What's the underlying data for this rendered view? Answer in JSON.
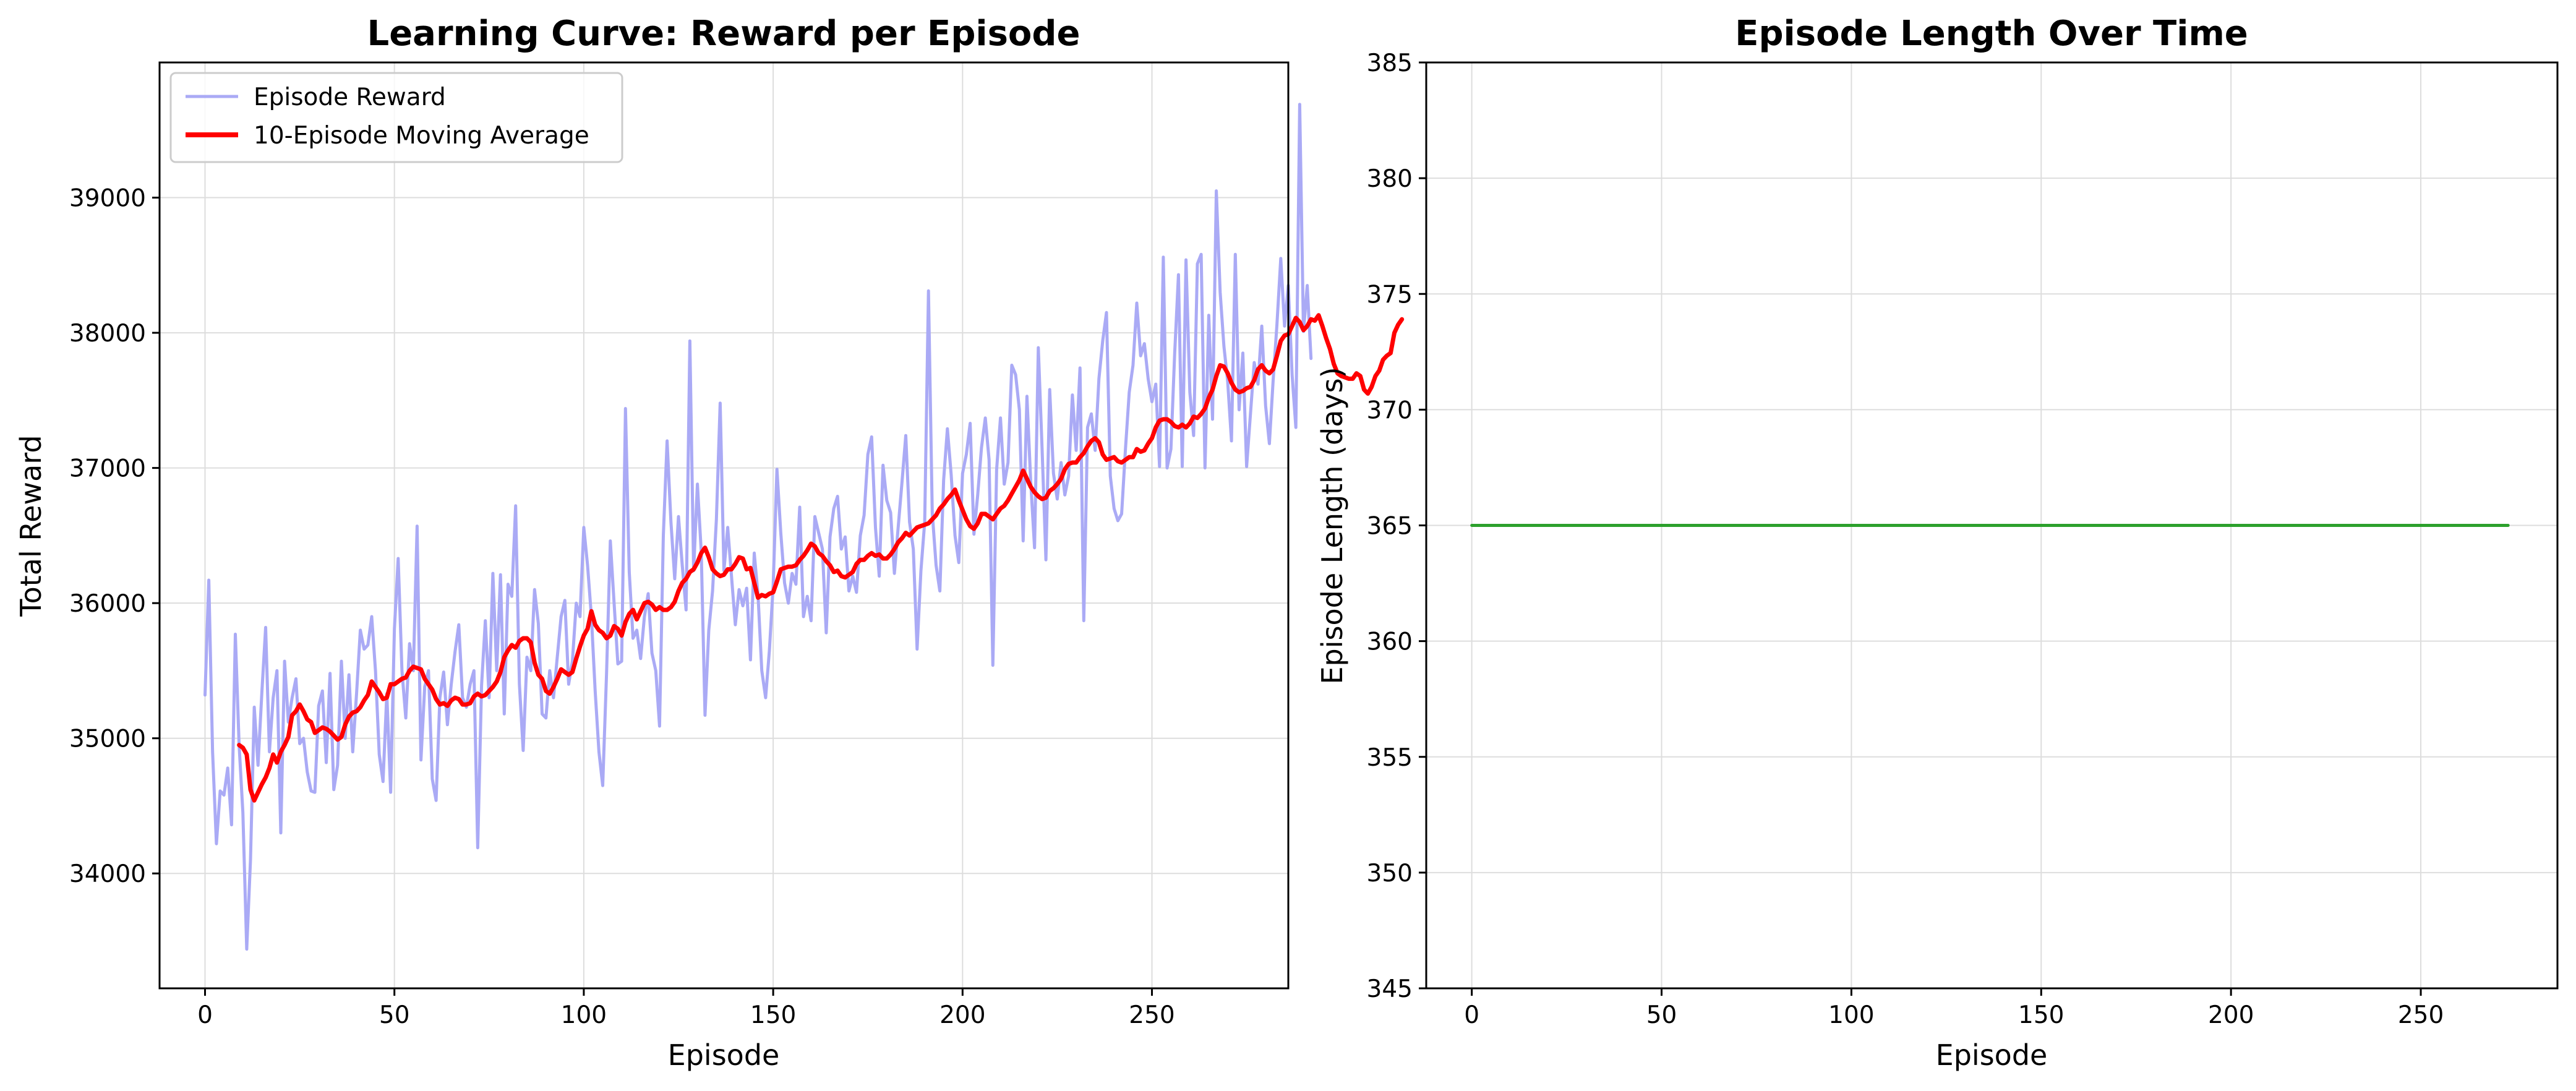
{
  "chart_data": [
    {
      "type": "line",
      "title": "Learning Curve: Reward per Episode",
      "xlabel": "Episode",
      "ylabel": "Total Reward",
      "xlim": [
        -12,
        286
      ],
      "ylim": [
        33150,
        40000
      ],
      "xticks": [
        0,
        50,
        100,
        150,
        200,
        250
      ],
      "yticks": [
        34000,
        35000,
        36000,
        37000,
        38000,
        39000
      ],
      "grid": true,
      "legend_position": "top-left",
      "series": [
        {
          "name": "Episode Reward",
          "color": "#aaaaf5",
          "x_start": 0,
          "values": [
            35320,
            36170,
            34900,
            34220,
            34610,
            34580,
            34780,
            34360,
            35770,
            34950,
            34450,
            33440,
            34100,
            35230,
            34800,
            35340,
            35820,
            34900,
            35300,
            35500,
            34300,
            35570,
            35120,
            35300,
            35440,
            34960,
            35000,
            34750,
            34610,
            34600,
            35240,
            35350,
            34820,
            35480,
            34620,
            34800,
            35570,
            35000,
            35470,
            34900,
            35330,
            35800,
            35660,
            35690,
            35900,
            35500,
            34880,
            34680,
            35330,
            34600,
            35810,
            36330,
            35500,
            35150,
            35700,
            35500,
            36570,
            34840,
            35380,
            35500,
            34700,
            34540,
            35300,
            35490,
            35100,
            35400,
            35640,
            35840,
            35300,
            35230,
            35400,
            35500,
            34190,
            35390,
            35870,
            35300,
            36220,
            35500,
            36210,
            35180,
            36140,
            36050,
            36720,
            35400,
            34910,
            35600,
            35500,
            36100,
            35850,
            35180,
            35150,
            35500,
            35300,
            35600,
            35900,
            36020,
            35400,
            35570,
            36000,
            35900,
            36560,
            36280,
            35900,
            35350,
            34900,
            34650,
            35480,
            36460,
            36000,
            35550,
            35570,
            37440,
            36230,
            35740,
            35800,
            35590,
            35900,
            36070,
            35630,
            35500,
            35090,
            36500,
            37200,
            36600,
            36180,
            36640,
            36280,
            35950,
            37940,
            36240,
            36880,
            36380,
            35170,
            35800,
            36090,
            36620,
            37480,
            36240,
            36560,
            36200,
            35840,
            36100,
            35980,
            36110,
            35580,
            36370,
            36060,
            35500,
            35300,
            35650,
            36130,
            36990,
            36520,
            36150,
            36000,
            36220,
            36140,
            36710,
            35900,
            36050,
            35870,
            36640,
            36520,
            36400,
            35780,
            36490,
            36700,
            36790,
            36400,
            36490,
            36090,
            36200,
            36080,
            36500,
            36650,
            37100,
            37230,
            36560,
            36200,
            37020,
            36760,
            36670,
            36220,
            36560,
            36890,
            37240,
            36600,
            36400,
            35660,
            36240,
            36600,
            38310,
            36670,
            36280,
            36090,
            36910,
            37290,
            36950,
            36500,
            36300,
            36960,
            37100,
            37330,
            36510,
            36800,
            37150,
            37370,
            37060,
            35540,
            36990,
            37370,
            36880,
            37040,
            37760,
            37690,
            37430,
            36460,
            37530,
            36890,
            36410,
            37890,
            37140,
            36320,
            37580,
            36960,
            36770,
            37040,
            36800,
            36940,
            37540,
            37130,
            37740,
            35870,
            37300,
            37400,
            37130,
            37660,
            37940,
            38150,
            36940,
            36700,
            36610,
            36660,
            37140,
            37560,
            37760,
            38220,
            37830,
            37920,
            37660,
            37490,
            37620,
            37010,
            38560,
            37000,
            37140,
            37850,
            38430,
            37010,
            38540,
            37560,
            37240,
            38510,
            38580,
            37000,
            38130,
            37360,
            39050,
            38300,
            37900,
            37640,
            37200,
            38580,
            37430,
            37850,
            37010,
            37400,
            37780,
            37620,
            38050,
            37460,
            37180,
            37650,
            38060,
            38550,
            38050,
            38350,
            37690,
            37300,
            39690,
            38010,
            38350,
            37810
          ]
        },
        {
          "name": "10-Episode Moving Average",
          "color": "#ff0000",
          "x_start": 9,
          "values": [
            34950,
            34930,
            34880,
            34620,
            34540,
            34600,
            34660,
            34710,
            34780,
            34880,
            34820,
            34900,
            34950,
            35010,
            35170,
            35200,
            35250,
            35200,
            35140,
            35120,
            35040,
            35060,
            35080,
            35070,
            35050,
            35020,
            34990,
            35010,
            35100,
            35160,
            35190,
            35200,
            35230,
            35280,
            35320,
            35420,
            35380,
            35340,
            35290,
            35300,
            35400,
            35400,
            35420,
            35440,
            35450,
            35500,
            35530,
            35520,
            35510,
            35440,
            35400,
            35360,
            35290,
            35250,
            35260,
            35240,
            35280,
            35300,
            35290,
            35250,
            35250,
            35260,
            35310,
            35330,
            35310,
            35320,
            35350,
            35380,
            35420,
            35490,
            35600,
            35650,
            35690,
            35670,
            35720,
            35740,
            35740,
            35710,
            35560,
            35470,
            35440,
            35350,
            35330,
            35380,
            35440,
            35510,
            35490,
            35470,
            35490,
            35590,
            35680,
            35760,
            35810,
            35940,
            35840,
            35800,
            35780,
            35740,
            35760,
            35830,
            35810,
            35760,
            35860,
            35920,
            35950,
            35880,
            35940,
            36000,
            36010,
            35990,
            35950,
            35970,
            35950,
            35950,
            35970,
            36010,
            36090,
            36150,
            36180,
            36230,
            36250,
            36300,
            36370,
            36410,
            36340,
            36250,
            36220,
            36200,
            36210,
            36250,
            36250,
            36290,
            36340,
            36330,
            36250,
            36260,
            36150,
            36040,
            36060,
            36050,
            36070,
            36080,
            36160,
            36250,
            36260,
            36270,
            36270,
            36280,
            36320,
            36350,
            36390,
            36440,
            36420,
            36370,
            36350,
            36310,
            36280,
            36230,
            36240,
            36200,
            36190,
            36210,
            36230,
            36290,
            36320,
            36320,
            36350,
            36370,
            36350,
            36360,
            36330,
            36330,
            36360,
            36400,
            36450,
            36480,
            36520,
            36500,
            36530,
            36560,
            36570,
            36580,
            36590,
            36620,
            36650,
            36700,
            36730,
            36770,
            36800,
            36840,
            36760,
            36690,
            36620,
            36570,
            36550,
            36590,
            36660,
            36660,
            36640,
            36620,
            36660,
            36700,
            36720,
            36760,
            36810,
            36860,
            36910,
            36980,
            36920,
            36860,
            36820,
            36790,
            36770,
            36780,
            36830,
            36850,
            36880,
            36920,
            36990,
            37030,
            37040,
            37040,
            37080,
            37110,
            37160,
            37200,
            37220,
            37190,
            37100,
            37060,
            37070,
            37080,
            37050,
            37040,
            37060,
            37080,
            37080,
            37140,
            37120,
            37130,
            37180,
            37220,
            37300,
            37350,
            37360,
            37360,
            37340,
            37310,
            37300,
            37320,
            37300,
            37330,
            37380,
            37370,
            37400,
            37440,
            37520,
            37580,
            37680,
            37760,
            37750,
            37700,
            37630,
            37580,
            37560,
            37570,
            37590,
            37600,
            37650,
            37730,
            37760,
            37720,
            37700,
            37730,
            37830,
            37940,
            37980,
            37990,
            38050,
            38110,
            38080,
            38020,
            38050,
            38100,
            38090,
            38130,
            38050,
            37960,
            37880,
            37770,
            37700,
            37680,
            37670,
            37660,
            37660,
            37700,
            37680,
            37580,
            37550,
            37600,
            37680,
            37720,
            37800,
            37830,
            37850,
            38000,
            38060,
            38100
          ]
        }
      ]
    },
    {
      "type": "line",
      "title": "Episode Length Over Time",
      "xlabel": "Episode",
      "ylabel": "Episode Length (days)",
      "xlim": [
        -12,
        286
      ],
      "ylim": [
        345,
        385
      ],
      "xticks": [
        0,
        50,
        100,
        150,
        200,
        250
      ],
      "yticks": [
        345,
        350,
        355,
        360,
        365,
        370,
        375,
        380,
        385
      ],
      "grid": true,
      "series": [
        {
          "color": "#2ca02c",
          "x": [
            0,
            273
          ],
          "values": [
            365,
            365
          ]
        }
      ]
    }
  ]
}
